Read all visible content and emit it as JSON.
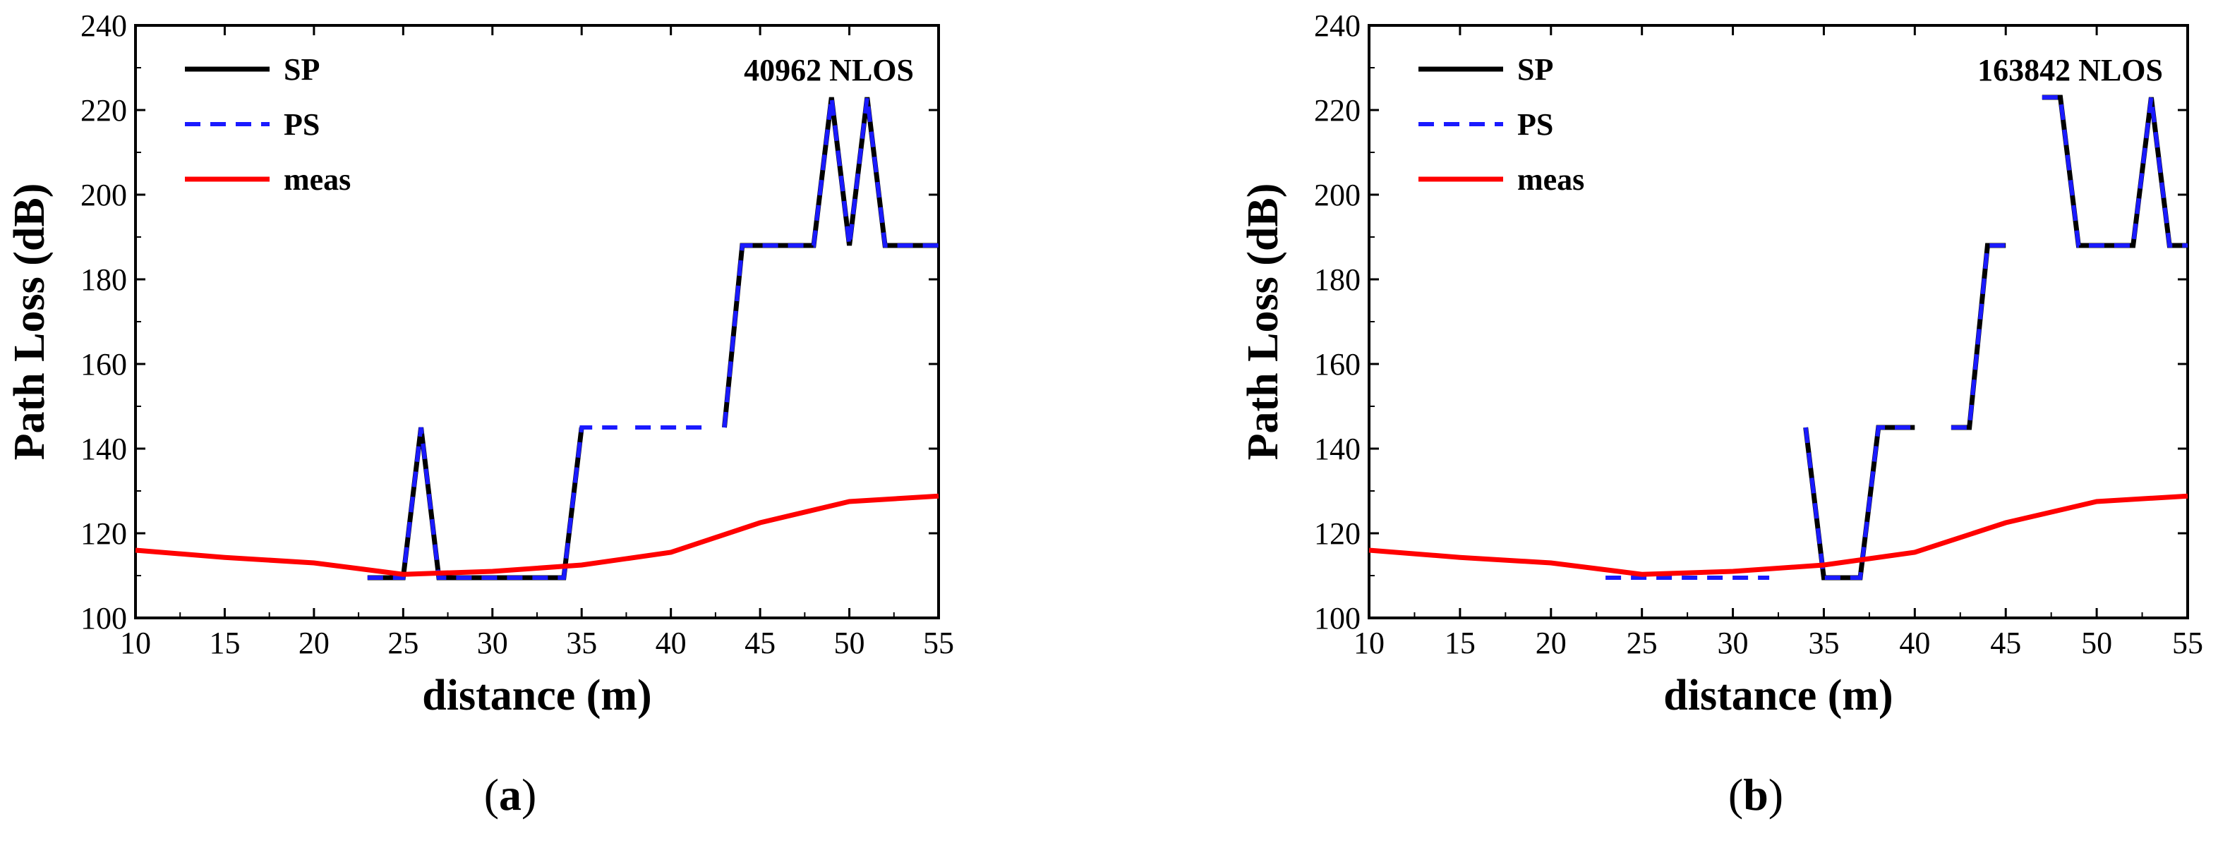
{
  "chart_data": [
    {
      "type": "line",
      "caption_letter": "a",
      "annotation": "40962  NLOS",
      "xlabel": "distance (m)",
      "ylabel": "Path Loss (dB)",
      "xlim": [
        10,
        55
      ],
      "ylim": [
        100,
        240
      ],
      "xticks": [
        10,
        15,
        20,
        25,
        30,
        35,
        40,
        45,
        50,
        55
      ],
      "yticks": [
        100,
        120,
        140,
        160,
        180,
        200,
        220,
        240
      ],
      "legend_position": "top-left",
      "series": [
        {
          "name": "SP",
          "color": "#000000",
          "style": "solid",
          "segments": [
            [
              [
                23,
                109.5
              ],
              [
                25,
                109.5
              ],
              [
                26,
                145
              ],
              [
                27,
                109.5
              ],
              [
                34,
                109.5
              ],
              [
                35,
                145
              ]
            ],
            [
              [
                43,
                145
              ],
              [
                44,
                188
              ],
              [
                48,
                188
              ],
              [
                49,
                223
              ],
              [
                50,
                188
              ],
              [
                51,
                223
              ],
              [
                52,
                188
              ],
              [
                55,
                188
              ]
            ]
          ]
        },
        {
          "name": "PS",
          "color": "#1a1aff",
          "style": "dashed",
          "segments": [
            [
              [
                23,
                109.5
              ],
              [
                25,
                109.5
              ],
              [
                26,
                145
              ],
              [
                27,
                109.5
              ],
              [
                34,
                109.5
              ],
              [
                35,
                145
              ],
              [
                37,
                145
              ]
            ],
            [
              [
                38,
                145
              ],
              [
                42,
                145
              ]
            ],
            [
              [
                43,
                145
              ],
              [
                44,
                188
              ],
              [
                48,
                188
              ],
              [
                49,
                223
              ],
              [
                50,
                188
              ],
              [
                51,
                223
              ],
              [
                52,
                188
              ],
              [
                55,
                188
              ]
            ]
          ]
        },
        {
          "name": "meas",
          "color": "#ff0000",
          "style": "solid",
          "segments": [
            [
              [
                10,
                116
              ],
              [
                15,
                114.3
              ],
              [
                20,
                113
              ],
              [
                25,
                110.3
              ],
              [
                30,
                111
              ],
              [
                35,
                112.5
              ],
              [
                40,
                115.5
              ],
              [
                45,
                122.5
              ],
              [
                50,
                127.5
              ],
              [
                55,
                128.8
              ]
            ]
          ]
        }
      ]
    },
    {
      "type": "line",
      "caption_letter": "b",
      "annotation": "163842  NLOS",
      "xlabel": "distance (m)",
      "ylabel": "Path Loss (dB)",
      "xlim": [
        10,
        55
      ],
      "ylim": [
        100,
        240
      ],
      "xticks": [
        10,
        15,
        20,
        25,
        30,
        35,
        40,
        45,
        50,
        55
      ],
      "yticks": [
        100,
        120,
        140,
        160,
        180,
        200,
        220,
        240
      ],
      "legend_position": "top-left",
      "series": [
        {
          "name": "SP",
          "color": "#000000",
          "style": "solid",
          "segments": [
            [
              [
                34,
                145
              ],
              [
                35,
                109.5
              ],
              [
                37,
                109.5
              ],
              [
                38,
                145
              ],
              [
                40,
                145
              ]
            ],
            [
              [
                42,
                145
              ],
              [
                43,
                145
              ],
              [
                44,
                188
              ],
              [
                45,
                188
              ]
            ],
            [
              [
                47,
                223
              ],
              [
                48,
                223
              ],
              [
                49,
                188
              ],
              [
                52,
                188
              ],
              [
                53,
                223
              ],
              [
                54,
                188
              ],
              [
                55,
                188
              ]
            ]
          ]
        },
        {
          "name": "PS",
          "color": "#1a1aff",
          "style": "dashed",
          "segments": [
            [
              [
                23,
                109.5
              ],
              [
                32,
                109.5
              ]
            ],
            [
              [
                34,
                145
              ],
              [
                35,
                109.5
              ],
              [
                37,
                109.5
              ],
              [
                38,
                145
              ],
              [
                40,
                145
              ]
            ],
            [
              [
                42,
                145
              ],
              [
                43,
                145
              ],
              [
                44,
                188
              ],
              [
                45,
                188
              ]
            ],
            [
              [
                47,
                223
              ],
              [
                48,
                223
              ],
              [
                49,
                188
              ],
              [
                52,
                188
              ],
              [
                53,
                223
              ],
              [
                54,
                188
              ],
              [
                55,
                188
              ]
            ]
          ]
        },
        {
          "name": "meas",
          "color": "#ff0000",
          "style": "solid",
          "segments": [
            [
              [
                10,
                116
              ],
              [
                15,
                114.3
              ],
              [
                20,
                113
              ],
              [
                25,
                110.3
              ],
              [
                30,
                111
              ],
              [
                35,
                112.5
              ],
              [
                40,
                115.5
              ],
              [
                45,
                122.5
              ],
              [
                50,
                127.5
              ],
              [
                55,
                128.8
              ]
            ]
          ]
        }
      ]
    }
  ]
}
